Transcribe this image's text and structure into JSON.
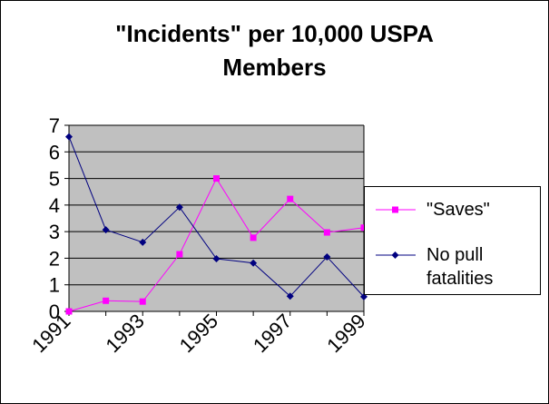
{
  "chart_data": {
    "type": "line",
    "title": "\"Incidents\" per 10,000 USPA Members",
    "x": [
      1991,
      1992,
      1993,
      1994,
      1995,
      1996,
      1997,
      1998,
      1999
    ],
    "x_tick_labels": [
      "1991",
      "1993",
      "1995",
      "1997",
      "1999"
    ],
    "ylim": [
      0,
      7
    ],
    "y_ticks": [
      0,
      1,
      2,
      3,
      4,
      5,
      6,
      7
    ],
    "grid": true,
    "legend_position": "right",
    "series": [
      {
        "name": "\"Saves\"",
        "values": [
          0.0,
          0.4,
          0.37,
          2.15,
          5.0,
          2.77,
          4.23,
          2.97,
          3.15
        ],
        "color": "#ff00ff",
        "marker": "square"
      },
      {
        "name": "No pull fatalities",
        "values": [
          6.57,
          3.07,
          2.6,
          3.92,
          1.98,
          1.82,
          0.57,
          2.05,
          0.55
        ],
        "color": "#000080",
        "marker": "diamond"
      }
    ],
    "plot_background": "#c0c0c0"
  }
}
